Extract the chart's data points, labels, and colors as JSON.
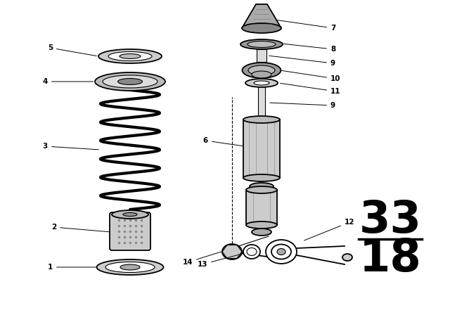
{
  "bg_color": "#ffffff",
  "line_color": "#000000",
  "part_number_top": "33",
  "part_number_bottom": "18",
  "label_fontsize": 7.5
}
